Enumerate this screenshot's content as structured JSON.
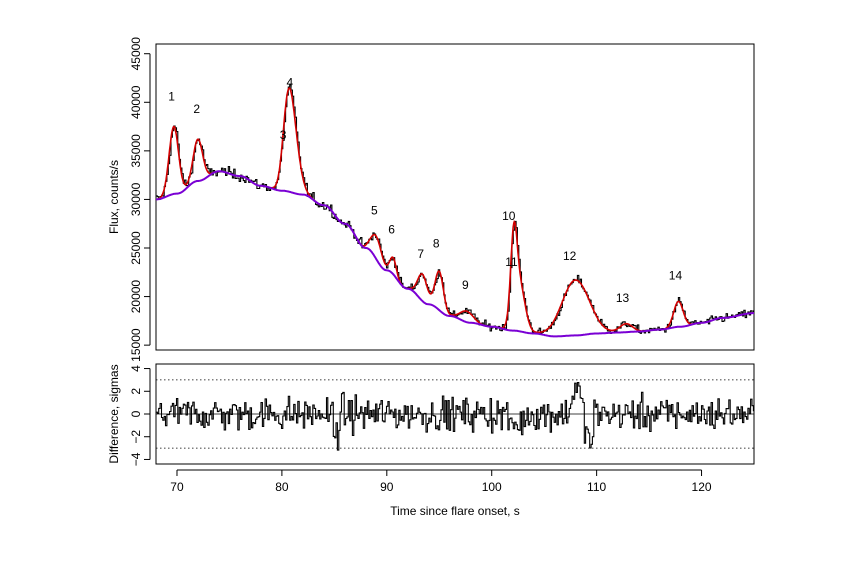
{
  "chart_data": [
    {
      "type": "line",
      "panel": "upper",
      "title": "",
      "xlabel": "",
      "ylabel": "Flux, counts/s",
      "xlim": [
        68,
        125
      ],
      "ylim": [
        14500,
        46000
      ],
      "x_ticks": [
        70,
        80,
        90,
        100,
        110,
        120
      ],
      "y_ticks": [
        15000,
        20000,
        25000,
        30000,
        35000,
        40000,
        45000
      ],
      "y_tick_labels": [
        "15000",
        "20000",
        "25000",
        "30000",
        "35000",
        "40000",
        "45000"
      ],
      "colors": {
        "data": "#000000",
        "pulse_fit": "#d40000",
        "background_fit": "#7a00d4"
      },
      "peaks": [
        {
          "label": "1",
          "x": 69.7,
          "y": 37500,
          "width": 0.45
        },
        {
          "label": "2",
          "x": 72.0,
          "y": 36200,
          "width": 0.45
        },
        {
          "label": "3",
          "x": 80.5,
          "y": 36000,
          "width": 0.45
        },
        {
          "label": "4",
          "x": 81.0,
          "y": 37500,
          "width": 0.6
        },
        {
          "label": "5",
          "x": 89.0,
          "y": 26200,
          "width": 0.5
        },
        {
          "label": "6",
          "x": 90.6,
          "y": 24000,
          "width": 0.3
        },
        {
          "label": "7",
          "x": 93.4,
          "y": 22300,
          "width": 0.45
        },
        {
          "label": "8",
          "x": 95.0,
          "y": 22600,
          "width": 0.4
        },
        {
          "label": "9",
          "x": 97.6,
          "y": 18500,
          "width": 0.6
        },
        {
          "label": "10",
          "x": 102.1,
          "y": 24200,
          "width": 0.3
        },
        {
          "label": "11",
          "x": 102.6,
          "y": 21500,
          "width": 0.55
        },
        {
          "label": "12",
          "x": 108.0,
          "y": 21700,
          "width": 1.3
        },
        {
          "label": "13",
          "x": 112.8,
          "y": 17200,
          "width": 0.6
        },
        {
          "label": "14",
          "x": 117.8,
          "y": 19500,
          "width": 0.45
        }
      ],
      "background_curve": {
        "x": [
          68,
          70,
          72,
          74,
          76,
          78,
          80,
          82,
          84,
          86,
          88,
          90,
          92,
          94,
          96,
          98,
          100,
          102,
          104,
          106,
          108,
          110,
          112,
          114,
          116,
          118,
          120,
          122,
          125
        ],
        "y": [
          30000,
          30600,
          31900,
          32900,
          32400,
          31400,
          30900,
          30500,
          29400,
          27500,
          25000,
          22700,
          20800,
          19200,
          18000,
          17300,
          16900,
          16500,
          16200,
          15900,
          16000,
          16200,
          16300,
          16400,
          16600,
          16900,
          17300,
          17800,
          18300
        ]
      }
    },
    {
      "type": "line",
      "panel": "lower",
      "title": "",
      "xlabel": "Time since flare onset, s",
      "ylabel": "Difference, sigmas",
      "xlim": [
        68,
        125
      ],
      "ylim": [
        -4.4,
        4.4
      ],
      "x_ticks": [
        70,
        80,
        90,
        100,
        110,
        120
      ],
      "x_tick_labels": [
        "70",
        "80",
        "90",
        "100",
        "110",
        "120"
      ],
      "y_ticks": [
        -4,
        -2,
        0,
        2,
        4
      ],
      "y_tick_labels": [
        "−4",
        "−2",
        "0",
        "2",
        "4"
      ],
      "reference_lines": [
        3,
        -3
      ],
      "baseline": 0
    }
  ]
}
